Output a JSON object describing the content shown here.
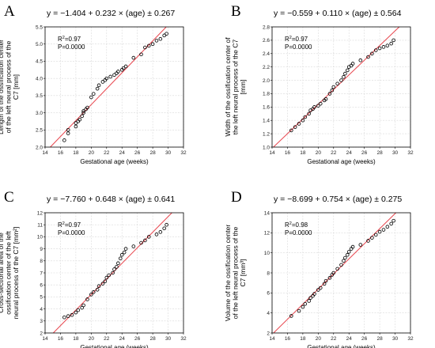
{
  "chart_data": [
    {
      "type": "scatter",
      "panel": "A",
      "equation": "y = −1.404 + 0.232 × (age) ± 0.267",
      "r2_label": "R",
      "r2_value": "=0.97",
      "p_label": "P=0.0000",
      "xlabel": "Gestational age (weeks)",
      "ylabel_lines": [
        "Length of the ossification center",
        "of the left neural process of the",
        "C7 [mm]"
      ],
      "ylabel_sup": "",
      "xlim": [
        14,
        32
      ],
      "ylim": [
        2.0,
        5.5
      ],
      "xticks": [
        14,
        16,
        18,
        20,
        22,
        24,
        26,
        28,
        30,
        32
      ],
      "yticks": [
        2.0,
        2.5,
        3.0,
        3.5,
        4.0,
        4.5,
        5.0,
        5.5
      ],
      "ytick_decimals": 1,
      "fit": {
        "intercept": -1.404,
        "slope": 0.232
      },
      "x": [
        16.5,
        17.0,
        17.0,
        18.0,
        18.0,
        18.3,
        18.5,
        18.8,
        19.0,
        19.0,
        19.3,
        19.5,
        20.0,
        20.3,
        20.8,
        21.0,
        21.5,
        21.8,
        22.0,
        22.5,
        23.0,
        23.3,
        23.5,
        24.0,
        24.2,
        24.5,
        25.5,
        26.5,
        27.0,
        27.5,
        28.0,
        28.5,
        29.0,
        29.5,
        29.8
      ],
      "y": [
        2.2,
        2.4,
        2.5,
        2.6,
        2.7,
        2.75,
        2.8,
        2.9,
        3.0,
        3.05,
        3.1,
        3.15,
        3.45,
        3.55,
        3.7,
        3.8,
        3.9,
        3.95,
        4.0,
        4.05,
        4.1,
        4.15,
        4.2,
        4.25,
        4.3,
        4.35,
        4.6,
        4.7,
        4.9,
        4.95,
        5.0,
        5.1,
        5.15,
        5.25,
        5.3
      ]
    },
    {
      "type": "scatter",
      "panel": "B",
      "equation": "y = −0.559 + 0.110 × (age) ± 0.564",
      "r2_label": "R",
      "r2_value": "=0.97",
      "p_label": "P=0.0000",
      "xlabel": "Gestational age (weeks)",
      "ylabel_lines": [
        "Width of the ossification center of",
        "the left neural process of the C7",
        "[mm]"
      ],
      "ylabel_sup": "",
      "xlim": [
        14,
        32
      ],
      "ylim": [
        1.0,
        2.8
      ],
      "xticks": [
        14,
        16,
        18,
        20,
        22,
        24,
        26,
        28,
        30,
        32
      ],
      "yticks": [
        1.0,
        1.2,
        1.4,
        1.6,
        1.8,
        2.0,
        2.2,
        2.4,
        2.6,
        2.8
      ],
      "ytick_decimals": 1,
      "fit": {
        "intercept": -0.559,
        "slope": 0.11
      },
      "x": [
        16.5,
        17.0,
        17.5,
        18.0,
        18.3,
        18.8,
        19.0,
        19.3,
        19.5,
        20.0,
        20.3,
        20.8,
        21.0,
        21.5,
        21.8,
        22.0,
        22.5,
        23.0,
        23.3,
        23.5,
        23.8,
        24.0,
        24.3,
        24.5,
        25.5,
        26.5,
        27.0,
        27.5,
        28.0,
        28.5,
        29.0,
        29.5,
        29.8
      ],
      "y": [
        1.25,
        1.3,
        1.35,
        1.4,
        1.45,
        1.5,
        1.55,
        1.57,
        1.6,
        1.62,
        1.65,
        1.7,
        1.72,
        1.8,
        1.85,
        1.9,
        1.95,
        2.0,
        2.05,
        2.1,
        2.15,
        2.2,
        2.22,
        2.25,
        2.3,
        2.35,
        2.4,
        2.45,
        2.48,
        2.5,
        2.52,
        2.55,
        2.6
      ]
    },
    {
      "type": "scatter",
      "panel": "C",
      "equation": "y = −7.760 + 0.648 × (age) ± 0.641",
      "r2_label": "R",
      "r2_value": "=0.97",
      "p_label": "P=0.0000",
      "xlabel": "Gestational age (weeks)",
      "ylabel_lines": [
        "Cross-sectional area of the",
        "ossification center of the left",
        "neural process of the C7"
      ],
      "ylabel_sup": "[mm²]",
      "xlim": [
        14,
        32
      ],
      "ylim": [
        2,
        12
      ],
      "xticks": [
        14,
        16,
        18,
        20,
        22,
        24,
        26,
        28,
        30,
        32
      ],
      "yticks": [
        2,
        3,
        4,
        5,
        6,
        7,
        8,
        9,
        10,
        11,
        12
      ],
      "ytick_decimals": 0,
      "fit": {
        "intercept": -7.76,
        "slope": 0.648
      },
      "x": [
        16.5,
        17.0,
        17.5,
        18.0,
        18.3,
        18.8,
        19.0,
        19.5,
        20.0,
        20.3,
        20.8,
        21.0,
        21.5,
        21.8,
        22.0,
        22.3,
        22.8,
        23.0,
        23.3,
        23.5,
        23.8,
        24.0,
        24.3,
        24.5,
        25.5,
        26.5,
        27.0,
        27.5,
        28.5,
        29.0,
        29.5,
        29.8
      ],
      "y": [
        3.3,
        3.4,
        3.5,
        3.7,
        3.9,
        4.1,
        4.3,
        4.8,
        5.2,
        5.4,
        5.6,
        5.9,
        6.1,
        6.3,
        6.6,
        6.8,
        7.0,
        7.3,
        7.5,
        7.8,
        8.2,
        8.5,
        8.7,
        9.0,
        9.2,
        9.5,
        9.7,
        10.0,
        10.2,
        10.4,
        10.7,
        11.0
      ]
    },
    {
      "type": "scatter",
      "panel": "D",
      "equation": "y = −8.699 + 0.754 × (age) ± 0.275",
      "r2_label": "R",
      "r2_value": "=0.98",
      "p_label": "P=0.0000",
      "xlabel": "Gestational age (weeks)",
      "ylabel_lines": [
        "Volume of the ossification center",
        "of the left neural process of the",
        "C7"
      ],
      "ylabel_sup": "[mm³]",
      "xlim": [
        14,
        32
      ],
      "ylim": [
        2,
        14
      ],
      "xticks": [
        14,
        16,
        18,
        20,
        22,
        24,
        26,
        28,
        30,
        32
      ],
      "yticks": [
        2,
        4,
        6,
        8,
        10,
        12,
        14
      ],
      "ytick_decimals": 0,
      "fit": {
        "intercept": -8.699,
        "slope": 0.754
      },
      "x": [
        16.5,
        17.5,
        18.0,
        18.3,
        18.8,
        19.0,
        19.3,
        19.5,
        20.0,
        20.3,
        20.8,
        21.0,
        21.5,
        21.8,
        22.0,
        22.5,
        23.0,
        23.3,
        23.5,
        23.8,
        24.0,
        24.3,
        24.5,
        25.5,
        26.5,
        27.0,
        27.5,
        28.0,
        28.5,
        29.0,
        29.5,
        29.8
      ],
      "y": [
        3.7,
        4.2,
        4.6,
        4.9,
        5.2,
        5.5,
        5.7,
        5.9,
        6.3,
        6.5,
        6.9,
        7.2,
        7.5,
        7.8,
        8.0,
        8.4,
        8.8,
        9.2,
        9.5,
        9.8,
        10.1,
        10.4,
        10.6,
        10.8,
        11.2,
        11.5,
        11.8,
        12.1,
        12.3,
        12.6,
        12.9,
        13.2
      ]
    }
  ]
}
